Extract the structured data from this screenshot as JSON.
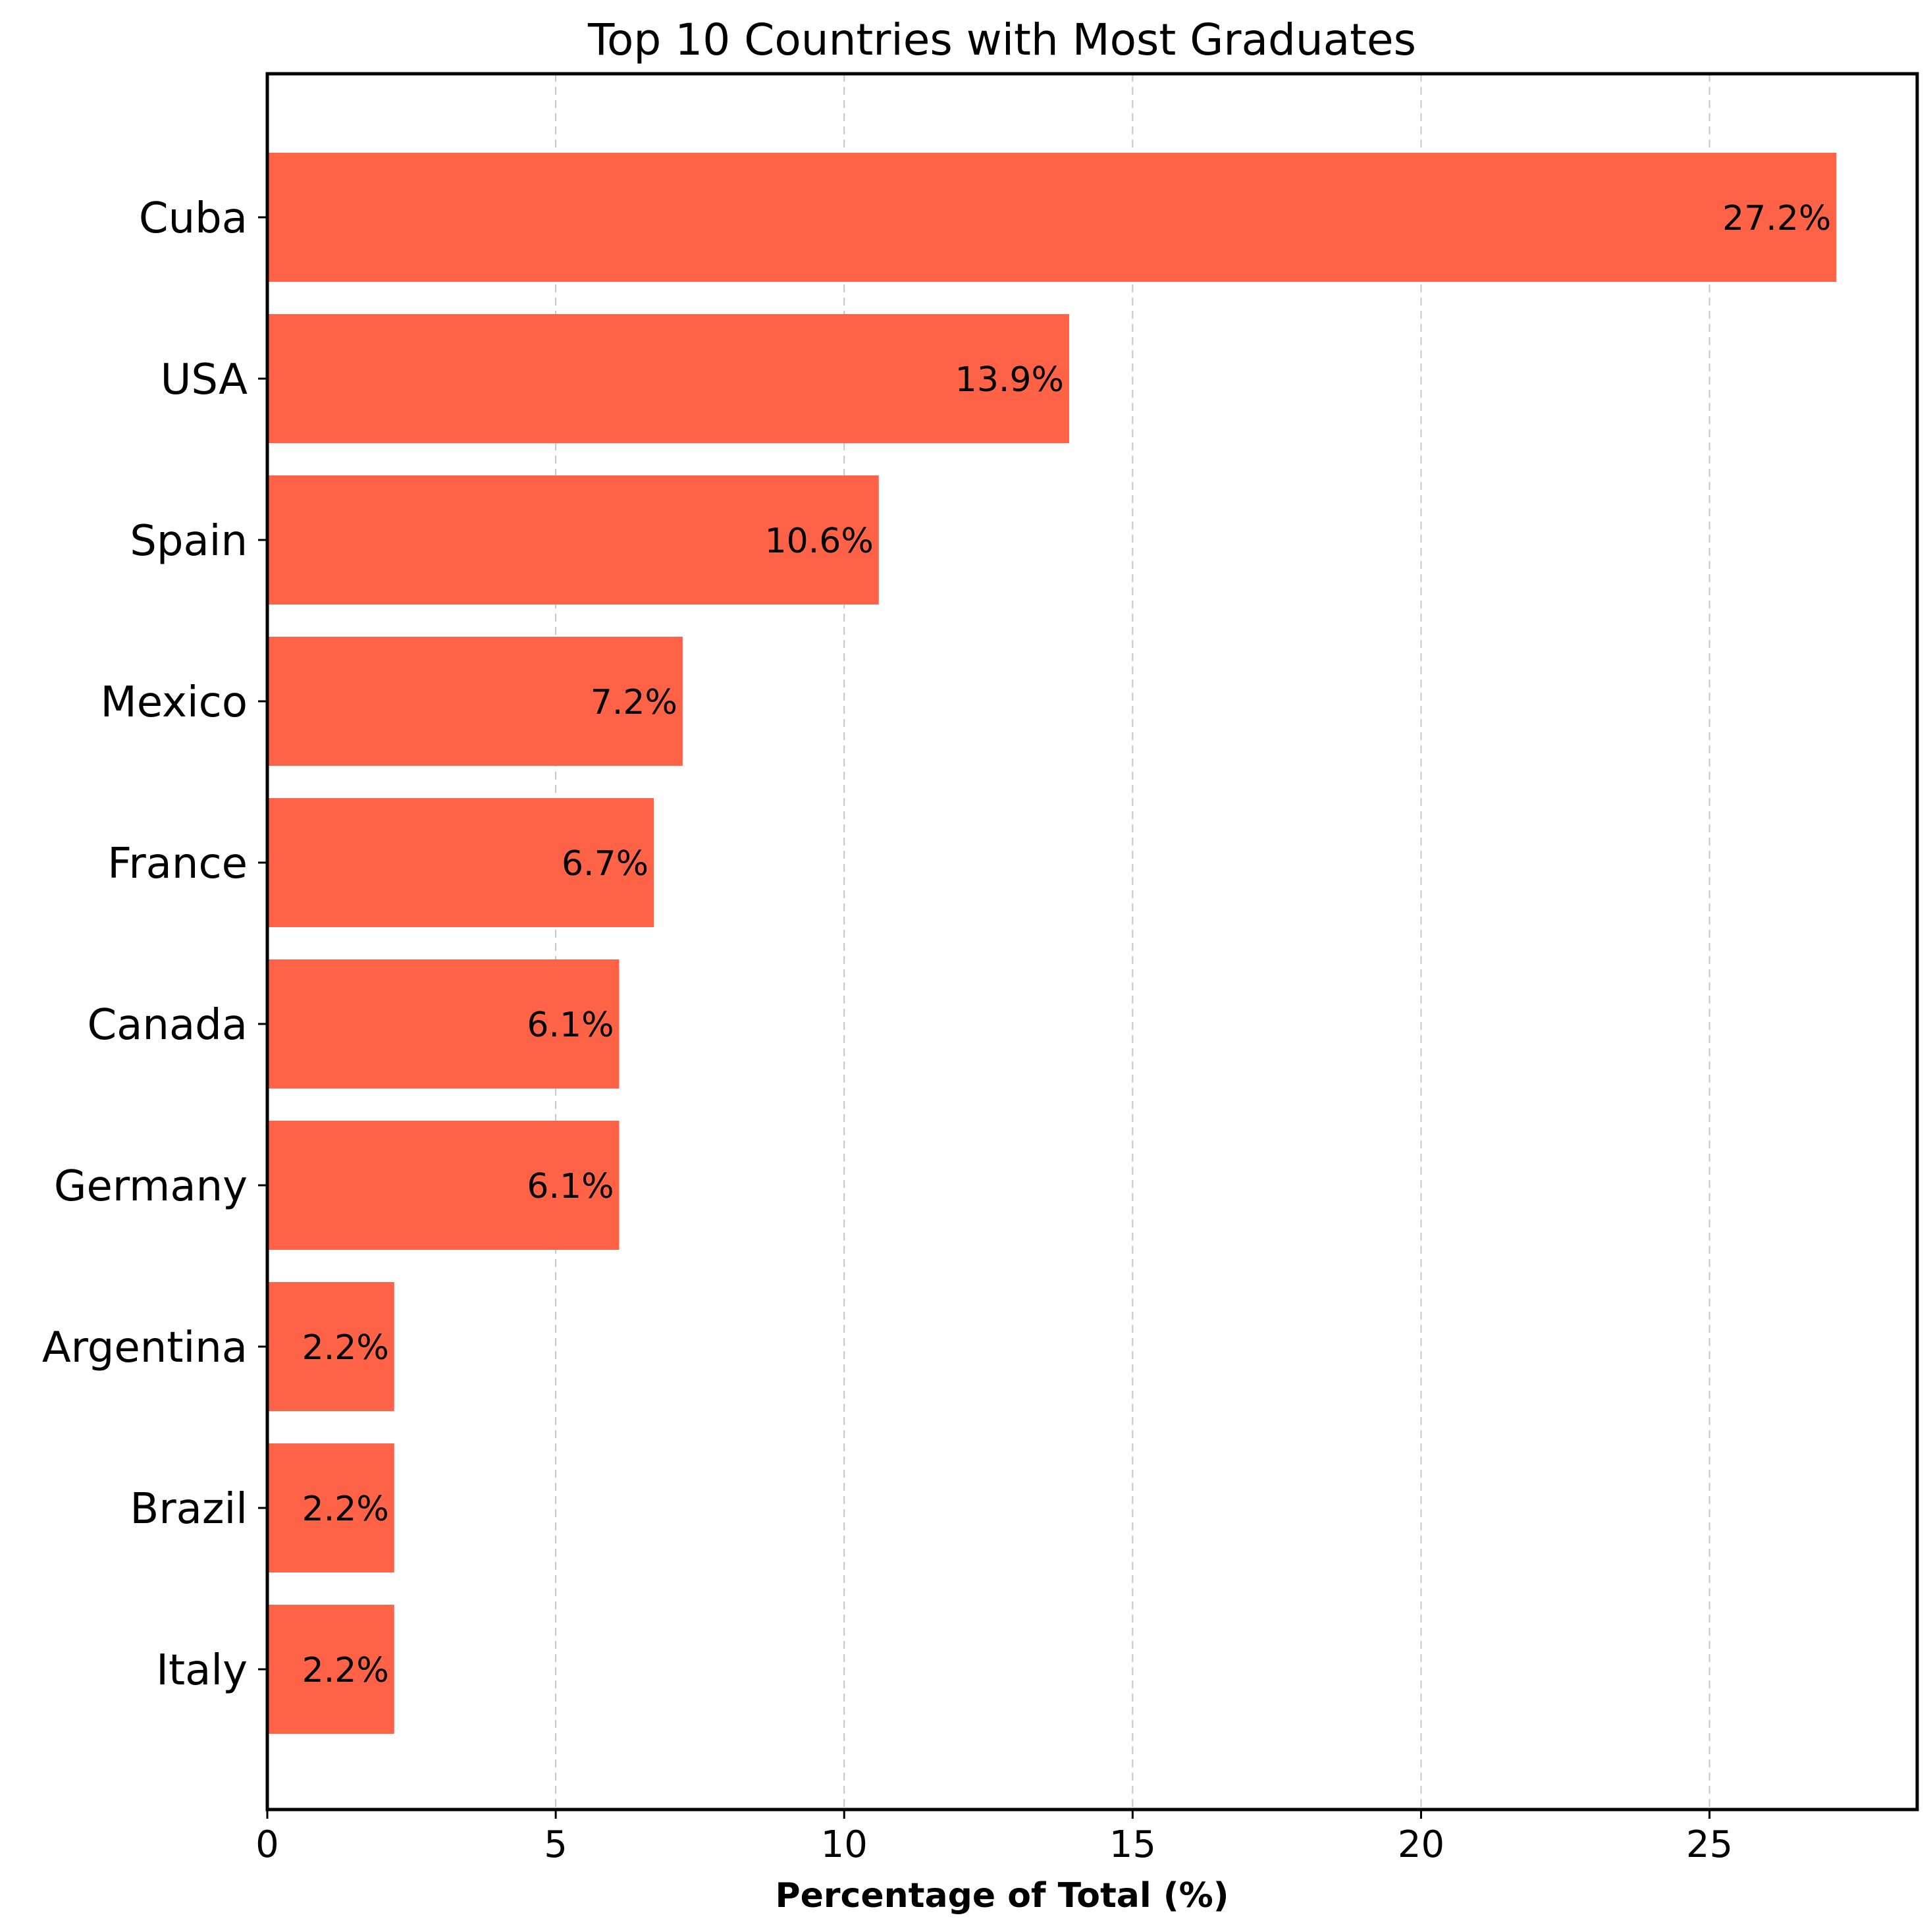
{
  "chart_data": {
    "type": "bar",
    "orientation": "horizontal",
    "title": "Top 10 Countries with Most Graduates",
    "xlabel": "Percentage of Total (%)",
    "ylabel": "",
    "categories": [
      "Cuba",
      "USA",
      "Spain",
      "Mexico",
      "France",
      "Canada",
      "Germany",
      "Argentina",
      "Brazil",
      "Italy"
    ],
    "values": [
      27.2,
      13.9,
      10.6,
      7.2,
      6.7,
      6.1,
      6.1,
      2.2,
      2.2,
      2.2
    ],
    "data_labels": [
      "27.2%",
      "13.9%",
      "10.6%",
      "7.2%",
      "6.7%",
      "6.1%",
      "6.1%",
      "2.2%",
      "2.2%",
      "2.2%"
    ],
    "xlim": [
      0,
      28.6
    ],
    "xticks": [
      0,
      5,
      10,
      15,
      20,
      25
    ],
    "grid": "x-dashed",
    "legend": "none",
    "bar_color": "#ff6347"
  }
}
